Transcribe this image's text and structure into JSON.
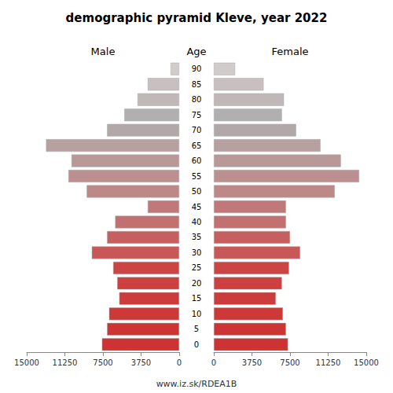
{
  "chart_data": {
    "type": "bar",
    "orientation": "horizontal",
    "title": "demographic pyramid Kleve, year 2022",
    "ylabel": "Age",
    "categories": [
      "0",
      "5",
      "10",
      "15",
      "20",
      "25",
      "30",
      "35",
      "40",
      "45",
      "50",
      "55",
      "60",
      "65",
      "70",
      "75",
      "80",
      "85",
      "90"
    ],
    "series": [
      {
        "name": "Male",
        "values": [
          7600,
          7100,
          6900,
          5900,
          6100,
          6500,
          8600,
          7100,
          6300,
          3100,
          9100,
          10900,
          10600,
          13100,
          7100,
          5400,
          4100,
          3100,
          850
        ]
      },
      {
        "name": "Female",
        "values": [
          7300,
          7100,
          6800,
          6100,
          6700,
          7400,
          8500,
          7500,
          7100,
          7100,
          11900,
          14300,
          12500,
          10500,
          8100,
          6700,
          6900,
          4900,
          2100
        ]
      }
    ],
    "colors": [
      "#cd3333",
      "#cd3535",
      "#cd3838",
      "#cc3c3c",
      "#cc4040",
      "#cb4545",
      "#c85858",
      "#c66060",
      "#c37070",
      "#c07878",
      "#be8888",
      "#bc9090",
      "#b99898",
      "#b6a0a0",
      "#b3a8a8",
      "#b0b0b0",
      "#c0b8b8",
      "#c8c0c0",
      "#d0cccc"
    ],
    "xlim": [
      0,
      15000
    ],
    "xticks": [
      0,
      3750,
      7500,
      11250,
      15000
    ],
    "grid": false,
    "annotations": [
      "www.iz.sk/RDEA1B"
    ]
  }
}
